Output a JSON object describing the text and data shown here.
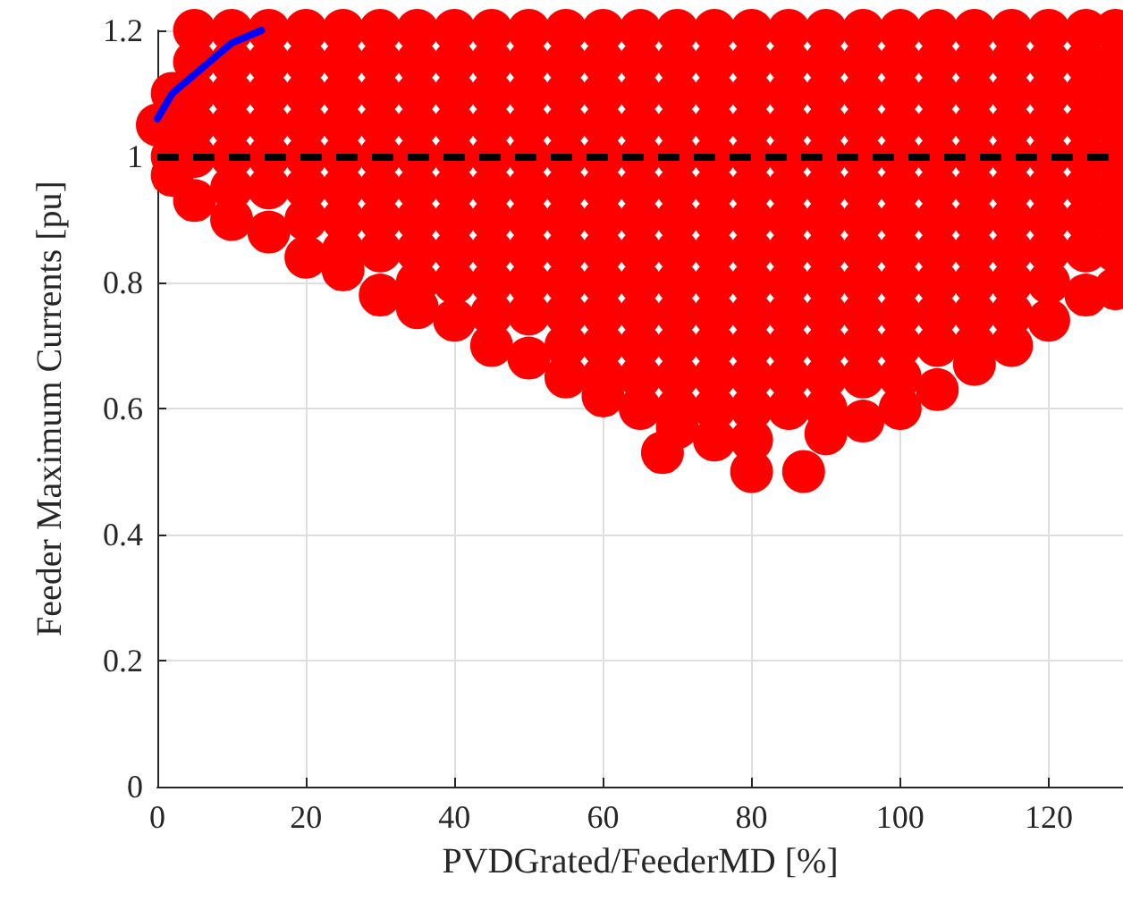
{
  "chart_data": {
    "type": "scatter",
    "xlabel": "PVDGrated/FeederMD [%]",
    "ylabel": "Feeder Maximum Currents [pu]",
    "xlim": [
      0,
      130
    ],
    "xticks": [
      0,
      20,
      40,
      60,
      80,
      100,
      120
    ],
    "ylim": [
      0,
      1.2
    ],
    "yticks": [
      0,
      0.2,
      0.4,
      0.6,
      0.8,
      1,
      1.2
    ],
    "grid": true,
    "series": [
      {
        "color": "#ff0000",
        "marker": "circle",
        "x": [
          0,
          2,
          2,
          2,
          5,
          5,
          5,
          5,
          5,
          5,
          10,
          10,
          10,
          10,
          10,
          10,
          10,
          15,
          15,
          15,
          15,
          15,
          15,
          15,
          20,
          20,
          20,
          20,
          20,
          20,
          20,
          20,
          25,
          25,
          25,
          25,
          25,
          25,
          25,
          25,
          25,
          30,
          30,
          30,
          30,
          30,
          30,
          30,
          30,
          30,
          35,
          35,
          35,
          35,
          35,
          35,
          35,
          35,
          35,
          35,
          40,
          40,
          40,
          40,
          40,
          40,
          40,
          40,
          40,
          40,
          45,
          45,
          45,
          45,
          45,
          45,
          45,
          45,
          45,
          45,
          45,
          50,
          50,
          50,
          50,
          50,
          50,
          50,
          50,
          50,
          50,
          50,
          55,
          55,
          55,
          55,
          55,
          55,
          55,
          55,
          55,
          55,
          55,
          55,
          60,
          60,
          60,
          60,
          60,
          60,
          60,
          60,
          60,
          60,
          60,
          60,
          60,
          65,
          65,
          65,
          65,
          65,
          65,
          65,
          65,
          65,
          65,
          65,
          65,
          65,
          70,
          70,
          70,
          70,
          70,
          70,
          70,
          70,
          70,
          70,
          70,
          70,
          70,
          70,
          75,
          75,
          75,
          75,
          75,
          75,
          75,
          75,
          75,
          75,
          75,
          75,
          75,
          75,
          80,
          80,
          80,
          80,
          80,
          80,
          80,
          80,
          80,
          80,
          80,
          80,
          80,
          80,
          85,
          85,
          85,
          85,
          85,
          85,
          85,
          85,
          85,
          85,
          85,
          85,
          85,
          90,
          90,
          90,
          90,
          90,
          90,
          90,
          90,
          90,
          90,
          90,
          90,
          90,
          90,
          95,
          95,
          95,
          95,
          95,
          95,
          95,
          95,
          95,
          95,
          95,
          95,
          95,
          100,
          100,
          100,
          100,
          100,
          100,
          100,
          100,
          100,
          100,
          100,
          100,
          100,
          105,
          105,
          105,
          105,
          105,
          105,
          105,
          105,
          105,
          105,
          105,
          105,
          110,
          110,
          110,
          110,
          110,
          110,
          110,
          110,
          110,
          110,
          110,
          110,
          115,
          115,
          115,
          115,
          115,
          115,
          115,
          115,
          115,
          115,
          115,
          120,
          120,
          120,
          120,
          120,
          120,
          120,
          120,
          120,
          120,
          125,
          125,
          125,
          125,
          125,
          125,
          125,
          125,
          125,
          129,
          129,
          129,
          129,
          129,
          129,
          129,
          129,
          129,
          80,
          87,
          68
        ],
        "values": [
          1.05,
          1.1,
          1,
          0.97,
          1.2,
          1.15,
          1.1,
          1.05,
          1,
          0.93,
          1.2,
          1.15,
          1.1,
          1.05,
          1,
          0.95,
          0.9,
          1.2,
          1.15,
          1.1,
          1.05,
          1,
          0.95,
          0.88,
          1.2,
          1.15,
          1.1,
          1.05,
          1,
          0.95,
          0.9,
          0.84,
          1.2,
          1.15,
          1.1,
          1.05,
          1,
          0.95,
          0.9,
          0.85,
          0.82,
          1.2,
          1.15,
          1.1,
          1.05,
          1,
          0.95,
          0.9,
          0.85,
          0.78,
          1.2,
          1.15,
          1.1,
          1.05,
          1,
          0.95,
          0.9,
          0.85,
          0.8,
          0.76,
          1.2,
          1.15,
          1.1,
          1.05,
          1,
          0.95,
          0.9,
          0.85,
          0.8,
          0.74,
          1.2,
          1.15,
          1.1,
          1.05,
          1,
          0.95,
          0.9,
          0.85,
          0.8,
          0.75,
          0.7,
          1.2,
          1.15,
          1.1,
          1.05,
          1,
          0.95,
          0.9,
          0.85,
          0.8,
          0.75,
          0.68,
          1.2,
          1.15,
          1.1,
          1.05,
          1,
          0.95,
          0.9,
          0.85,
          0.8,
          0.75,
          0.7,
          0.65,
          1.2,
          1.15,
          1.1,
          1.05,
          1,
          0.95,
          0.9,
          0.85,
          0.8,
          0.75,
          0.7,
          0.65,
          0.62,
          1.2,
          1.15,
          1.1,
          1.05,
          1,
          0.95,
          0.9,
          0.85,
          0.8,
          0.75,
          0.7,
          0.65,
          0.6,
          1.2,
          1.15,
          1.1,
          1.05,
          1,
          0.95,
          0.9,
          0.85,
          0.8,
          0.75,
          0.7,
          0.65,
          0.6,
          0.57,
          1.2,
          1.15,
          1.1,
          1.05,
          1,
          0.95,
          0.9,
          0.85,
          0.8,
          0.75,
          0.7,
          0.65,
          0.6,
          0.55,
          1.2,
          1.15,
          1.1,
          1.05,
          1,
          0.95,
          0.9,
          0.85,
          0.8,
          0.75,
          0.7,
          0.65,
          0.6,
          0.55,
          1.2,
          1.15,
          1.1,
          1.05,
          1,
          0.95,
          0.9,
          0.85,
          0.8,
          0.75,
          0.7,
          0.65,
          0.6,
          1.2,
          1.15,
          1.1,
          1.05,
          1,
          0.95,
          0.9,
          0.85,
          0.8,
          0.75,
          0.7,
          0.65,
          0.6,
          0.56,
          1.2,
          1.15,
          1.1,
          1.05,
          1,
          0.95,
          0.9,
          0.85,
          0.8,
          0.75,
          0.7,
          0.65,
          0.58,
          1.2,
          1.15,
          1.1,
          1.05,
          1,
          0.95,
          0.9,
          0.85,
          0.8,
          0.75,
          0.7,
          0.65,
          0.6,
          1.2,
          1.15,
          1.1,
          1.05,
          1,
          0.95,
          0.9,
          0.85,
          0.8,
          0.75,
          0.7,
          0.63,
          1.2,
          1.15,
          1.1,
          1.05,
          1,
          0.95,
          0.9,
          0.85,
          0.8,
          0.75,
          0.7,
          0.67,
          1.2,
          1.15,
          1.1,
          1.05,
          1,
          0.95,
          0.9,
          0.85,
          0.8,
          0.75,
          0.7,
          1.2,
          1.15,
          1.1,
          1.05,
          1,
          0.95,
          0.9,
          0.85,
          0.8,
          0.74,
          1.2,
          1.15,
          1.1,
          1.05,
          1,
          0.95,
          0.9,
          0.85,
          0.78,
          1.2,
          1.15,
          1.1,
          1.05,
          1,
          0.95,
          0.9,
          0.85,
          0.79,
          0.5,
          0.5,
          0.53
        ]
      },
      {
        "type": "line",
        "color": "#0000ff",
        "marker": "none",
        "line_style": "solid",
        "x": [
          0,
          1,
          2,
          4,
          6,
          8,
          10,
          12,
          14
        ],
        "values": [
          1.06,
          1.08,
          1.1,
          1.12,
          1.14,
          1.16,
          1.18,
          1.19,
          1.2
        ]
      }
    ],
    "ref_lines": [
      {
        "axis": "y",
        "value": 1,
        "color": "#000000",
        "line_style": "dashed"
      }
    ]
  }
}
